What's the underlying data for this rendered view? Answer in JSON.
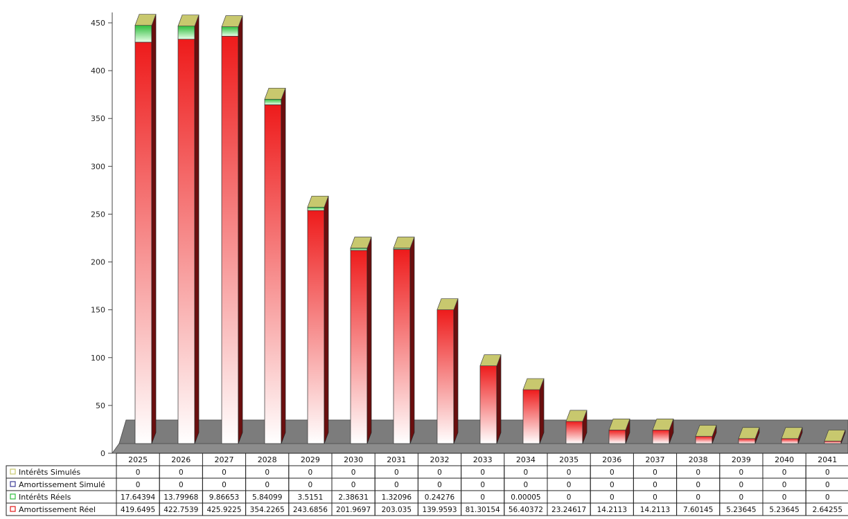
{
  "chart_data": {
    "type": "bar",
    "stacked": true,
    "categories": [
      "2025",
      "2026",
      "2027",
      "2028",
      "2029",
      "2030",
      "2031",
      "2032",
      "2033",
      "2034",
      "2035",
      "2036",
      "2037",
      "2038",
      "2039",
      "2040",
      "2041"
    ],
    "ylim": [
      0,
      450
    ],
    "yticks": [
      0,
      50,
      100,
      150,
      200,
      250,
      300,
      350,
      400,
      450
    ],
    "grid": false,
    "legend_position": "data-table-left",
    "series": [
      {
        "name": "Intérêts Simulés",
        "color": "#c8c86e",
        "values": [
          0,
          0,
          0,
          0,
          0,
          0,
          0,
          0,
          0,
          0,
          0,
          0,
          0,
          0,
          0,
          0,
          0
        ],
        "labels": [
          "0",
          "0",
          "0",
          "0",
          "0",
          "0",
          "0",
          "0",
          "0",
          "0",
          "0",
          "0",
          "0",
          "0",
          "0",
          "0",
          "0"
        ]
      },
      {
        "name": "Amortissement Simulé",
        "color": "#3c3c96",
        "values": [
          0,
          0,
          0,
          0,
          0,
          0,
          0,
          0,
          0,
          0,
          0,
          0,
          0,
          0,
          0,
          0,
          0
        ],
        "labels": [
          "0",
          "0",
          "0",
          "0",
          "0",
          "0",
          "0",
          "0",
          "0",
          "0",
          "0",
          "0",
          "0",
          "0",
          "0",
          "0",
          "0"
        ]
      },
      {
        "name": "Intérêts Réels",
        "color": "#2ebd3c",
        "values": [
          17.64394,
          13.79968,
          9.86653,
          5.84099,
          3.5151,
          2.38631,
          1.32096,
          0.24276,
          0,
          5e-05,
          0,
          0,
          0,
          0,
          0,
          0,
          0
        ],
        "labels": [
          "17.64394",
          "13.79968",
          "9.86653",
          "5.84099",
          "3.5151",
          "2.38631",
          "1.32096",
          "0.24276",
          "0",
          "0.00005",
          "0",
          "0",
          "0",
          "0",
          "0",
          "0",
          "0"
        ]
      },
      {
        "name": "Amortissement Réel",
        "color": "#e31a1a",
        "values": [
          419.6495,
          422.7539,
          425.9225,
          354.2265,
          243.6856,
          201.9697,
          203.035,
          139.9593,
          81.30154,
          56.40372,
          23.24617,
          14.2113,
          14.2113,
          7.60145,
          5.23645,
          5.23645,
          2.64255
        ],
        "labels": [
          "419.6495",
          "422.7539",
          "425.9225",
          "354.2265",
          "243.6856",
          "201.9697",
          "203.035",
          "139.9593",
          "81.30154",
          "56.40372",
          "23.24617",
          "14.2113",
          "14.2113",
          "7.60145",
          "5.23645",
          "5.23645",
          "2.64255"
        ]
      }
    ]
  }
}
